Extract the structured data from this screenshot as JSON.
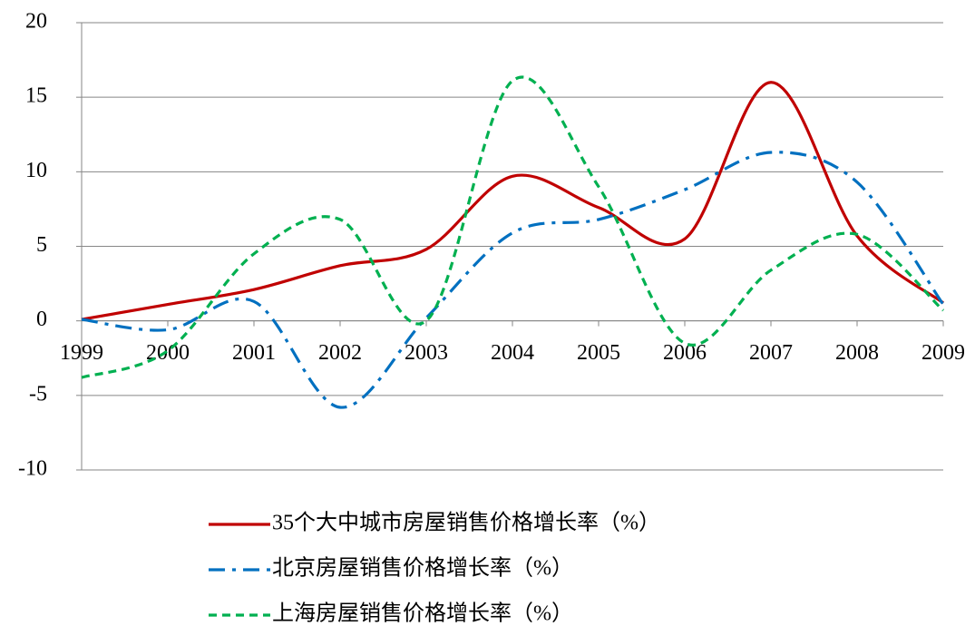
{
  "chart_data": {
    "type": "line",
    "x": [
      1999,
      2000,
      2001,
      2002,
      2003,
      2004,
      2005,
      2006,
      2007,
      2008,
      2009
    ],
    "xlim": [
      1999,
      2009
    ],
    "xticks": [
      1999,
      2000,
      2001,
      2002,
      2003,
      2004,
      2005,
      2006,
      2007,
      2008,
      2009
    ],
    "ylim": [
      -10,
      20
    ],
    "yticks": [
      -10,
      -5,
      0,
      5,
      10,
      15,
      20
    ],
    "grid": true,
    "legend": "bottom",
    "series": [
      {
        "name": "35个大中城市房屋销售价格增长率（%）",
        "color": "#c00000",
        "dash": "solid",
        "values": [
          0.1,
          1.1,
          2.1,
          3.7,
          4.8,
          9.7,
          7.6,
          5.5,
          16,
          5.7,
          1.2
        ]
      },
      {
        "name": "北京房屋销售价格增长率（%）",
        "color": "#0070c0",
        "dash": "dashdot",
        "values": [
          0.1,
          -0.6,
          1.3,
          -5.8,
          0.2,
          5.9,
          6.8,
          8.8,
          11.3,
          9.3,
          1.1
        ]
      },
      {
        "name": "上海房屋销售价格增长率（%）",
        "color": "#00b050",
        "dash": "dashed",
        "values": [
          -3.8,
          -2,
          4.5,
          6.8,
          0,
          16.1,
          9,
          -1.5,
          3.4,
          5.8,
          0.7
        ]
      }
    ]
  }
}
